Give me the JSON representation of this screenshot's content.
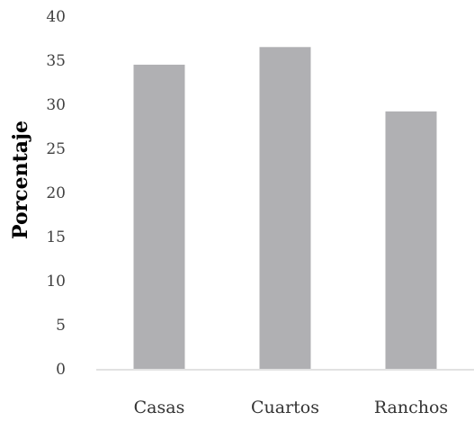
{
  "chart_data": {
    "type": "bar",
    "title": "",
    "xlabel": "",
    "ylabel": "Porcentaje",
    "categories": [
      "Casas",
      "Cuartos",
      "Ranchos"
    ],
    "values": [
      34.5,
      36.5,
      29.2
    ],
    "ylim": [
      0,
      40
    ],
    "yticks": [
      "0",
      "5",
      "10",
      "15",
      "20",
      "25",
      "30",
      "35",
      "40"
    ],
    "grid": false,
    "legend": "none",
    "bar_color": "#b0b0b3",
    "axis_color": "#d9d9d9"
  }
}
